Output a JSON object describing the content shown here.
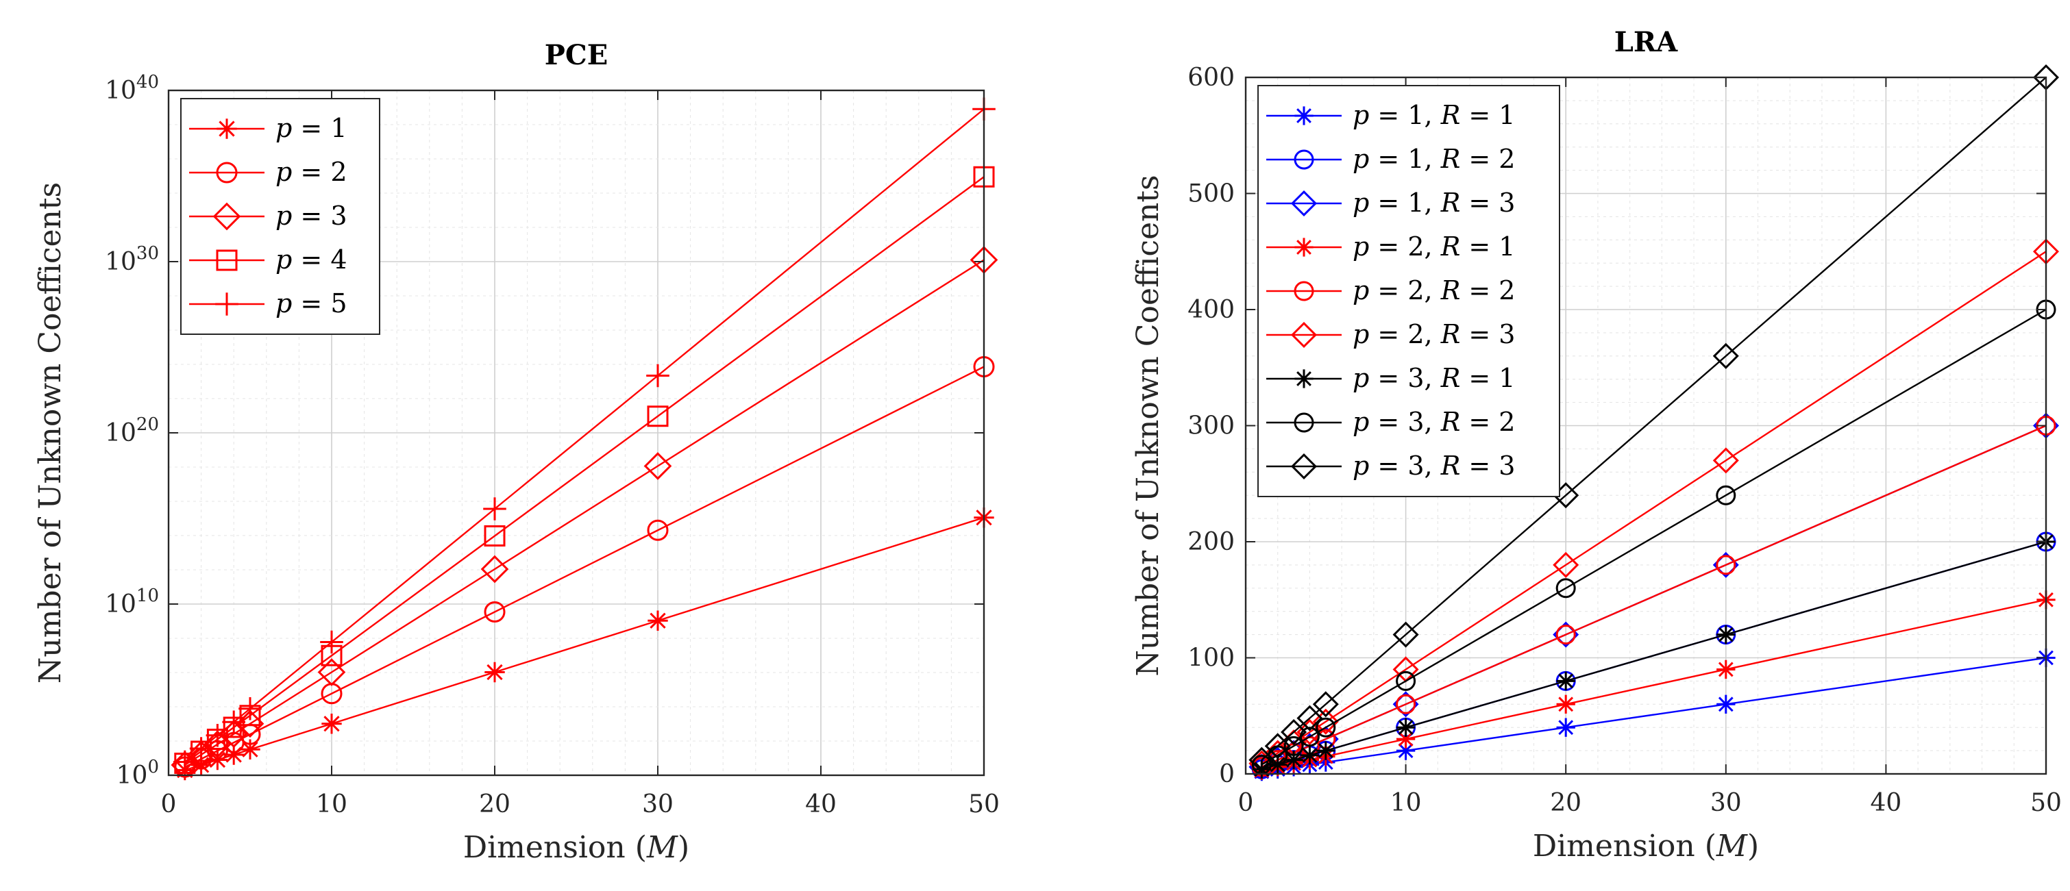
{
  "chart_data": [
    {
      "type": "line",
      "yscale": "log",
      "title": "PCE",
      "xlabel": "Dimension",
      "xlabel_var": "M",
      "ylabel": "Number of Unknown Coefficents",
      "xlim": [
        0,
        50
      ],
      "ylim_exponent": [
        0,
        40
      ],
      "log_base": 10,
      "xticks": [
        0,
        10,
        20,
        30,
        40,
        50
      ],
      "yticks_exponent": [
        0,
        10,
        20,
        30,
        40
      ],
      "grid": true,
      "legend_position": "top-left",
      "x": [
        1,
        2,
        3,
        4,
        5,
        10,
        20,
        30,
        50
      ],
      "series": [
        {
          "name": "p = 1",
          "pvar": "p",
          "pval": "1",
          "rval": "",
          "color": "#ff0000",
          "marker": "asterisk",
          "log10_values": [
            0.3,
            0.6,
            0.9,
            1.2,
            1.51,
            3.01,
            6.02,
            9.03,
            15.05
          ]
        },
        {
          "name": "p = 2",
          "pvar": "p",
          "pval": "2",
          "rval": "",
          "color": "#ff0000",
          "marker": "circle",
          "log10_values": [
            0.48,
            0.95,
            1.43,
            1.91,
            2.39,
            4.77,
            9.54,
            14.31,
            23.86
          ]
        },
        {
          "name": "p = 3",
          "pvar": "p",
          "pval": "3",
          "rval": "",
          "color": "#ff0000",
          "marker": "diamond",
          "log10_values": [
            0.6,
            1.2,
            1.81,
            2.41,
            3.01,
            6.02,
            12.04,
            18.06,
            30.1
          ]
        },
        {
          "name": "p = 4",
          "pvar": "p",
          "pval": "4",
          "rval": "",
          "color": "#ff0000",
          "marker": "square",
          "log10_values": [
            0.7,
            1.4,
            2.1,
            2.8,
            3.49,
            6.99,
            13.98,
            20.97,
            34.95
          ]
        },
        {
          "name": "p = 5",
          "pvar": "p",
          "pval": "5",
          "rval": "",
          "color": "#ff0000",
          "marker": "plus",
          "log10_values": [
            0.78,
            1.56,
            2.33,
            3.11,
            3.89,
            7.78,
            15.56,
            23.34,
            38.91
          ]
        }
      ]
    },
    {
      "type": "line",
      "yscale": "linear",
      "title": "LRA",
      "xlabel": "Dimension",
      "xlabel_var": "M",
      "ylabel": "Number of Unknown Coefficents",
      "xlim": [
        0,
        50
      ],
      "ylim": [
        0,
        600
      ],
      "xticks": [
        0,
        10,
        20,
        30,
        40,
        50
      ],
      "yticks": [
        0,
        100,
        200,
        300,
        400,
        500,
        600
      ],
      "grid": true,
      "legend_position": "top-left",
      "x": [
        1,
        2,
        3,
        4,
        5,
        10,
        20,
        30,
        50
      ],
      "series": [
        {
          "name": "p = 1, R = 1",
          "pvar": "p",
          "pval": "1",
          "rval": "1",
          "color": "#0000ff",
          "marker": "asterisk",
          "values": [
            2,
            4,
            6,
            8,
            10,
            20,
            40,
            60,
            100
          ]
        },
        {
          "name": "p = 1, R = 2",
          "pvar": "p",
          "pval": "1",
          "rval": "2",
          "color": "#0000ff",
          "marker": "circle",
          "values": [
            4,
            8,
            12,
            16,
            20,
            40,
            80,
            120,
            200
          ]
        },
        {
          "name": "p = 1, R = 3",
          "pvar": "p",
          "pval": "1",
          "rval": "3",
          "color": "#0000ff",
          "marker": "diamond",
          "values": [
            6,
            12,
            18,
            24,
            30,
            60,
            120,
            180,
            300
          ]
        },
        {
          "name": "p = 2, R = 1",
          "pvar": "p",
          "pval": "2",
          "rval": "1",
          "color": "#ff0000",
          "marker": "asterisk",
          "values": [
            3,
            6,
            9,
            12,
            15,
            30,
            60,
            90,
            150
          ]
        },
        {
          "name": "p = 2, R = 2",
          "pvar": "p",
          "pval": "2",
          "rval": "2",
          "color": "#ff0000",
          "marker": "circle",
          "values": [
            6,
            12,
            18,
            24,
            30,
            60,
            120,
            180,
            300
          ]
        },
        {
          "name": "p = 2, R = 3",
          "pvar": "p",
          "pval": "2",
          "rval": "3",
          "color": "#ff0000",
          "marker": "diamond",
          "values": [
            9,
            18,
            27,
            36,
            45,
            90,
            180,
            270,
            450
          ]
        },
        {
          "name": "p = 3, R = 1",
          "pvar": "p",
          "pval": "3",
          "rval": "1",
          "color": "#000000",
          "marker": "asterisk",
          "values": [
            4,
            8,
            12,
            16,
            20,
            40,
            80,
            120,
            200
          ]
        },
        {
          "name": "p = 3, R = 2",
          "pvar": "p",
          "pval": "3",
          "rval": "2",
          "color": "#000000",
          "marker": "circle",
          "values": [
            8,
            16,
            24,
            32,
            40,
            80,
            160,
            240,
            400
          ]
        },
        {
          "name": "p = 3, R = 3",
          "pvar": "p",
          "pval": "3",
          "rval": "3",
          "color": "#000000",
          "marker": "diamond",
          "values": [
            12,
            24,
            36,
            48,
            60,
            120,
            240,
            360,
            600
          ]
        }
      ]
    }
  ]
}
